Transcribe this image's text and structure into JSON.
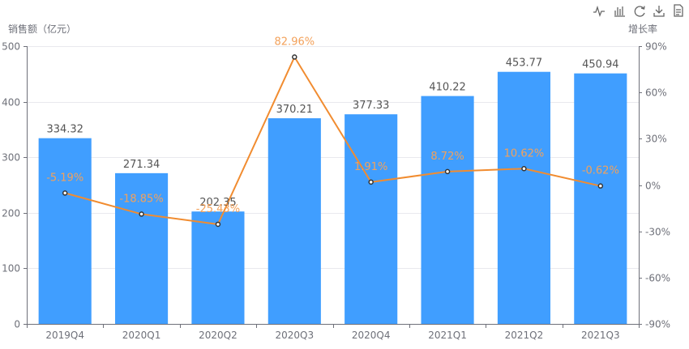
{
  "chart_data": {
    "type": "bar",
    "categories": [
      "2019Q4",
      "2020Q1",
      "2020Q2",
      "2020Q3",
      "2020Q4",
      "2021Q1",
      "2021Q2",
      "2021Q3"
    ],
    "series": [
      {
        "name": "销售额",
        "type": "bar",
        "axis": "left",
        "color": "#409EFF",
        "values": [
          334.32,
          271.34,
          202.35,
          370.21,
          377.33,
          410.22,
          453.77,
          450.94
        ],
        "labels": [
          "334.32",
          "271.34",
          "202.35",
          "370.21",
          "377.33",
          "410.22",
          "453.77",
          "450.94"
        ]
      },
      {
        "name": "增长率",
        "type": "line",
        "axis": "right",
        "color": "#F18C30",
        "label_color": "#F3A15A",
        "values": [
          -5.19,
          -18.85,
          -25.43,
          82.96,
          1.91,
          8.72,
          10.62,
          -0.62
        ],
        "labels": [
          "-5.19%",
          "-18.85%",
          "-25.43%",
          "82.96%",
          "1.91%",
          "8.72%",
          "10.62%",
          "-0.62%"
        ]
      }
    ],
    "yaxis_left": {
      "title": "销售额（亿元）",
      "min": 0,
      "max": 500,
      "ticks": [
        0,
        100,
        200,
        300,
        400,
        500
      ],
      "tick_labels": [
        "0",
        "100",
        "200",
        "300",
        "400",
        "500"
      ]
    },
    "yaxis_right": {
      "title": "增长率",
      "min": -90,
      "max": 90,
      "ticks": [
        -90,
        -60,
        -30,
        0,
        30,
        60,
        90
      ],
      "tick_labels": [
        "-90%",
        "-60%",
        "-30%",
        "0%",
        "30%",
        "60%",
        "90%"
      ]
    },
    "grid": true,
    "legend": "none"
  },
  "toolbox": {
    "items": [
      "line-chart-icon",
      "bar-chart-icon",
      "restore-icon",
      "download-icon",
      "data-view-icon"
    ]
  }
}
